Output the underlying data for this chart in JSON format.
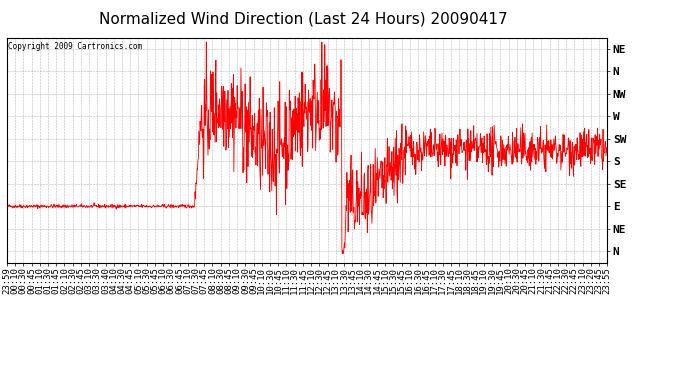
{
  "title": "Normalized Wind Direction (Last 24 Hours) 20090417",
  "copyright_text": "Copyright 2009 Cartronics.com",
  "line_color": "#ff0000",
  "background_color": "#ffffff",
  "grid_color": "#b0b0b0",
  "y_tick_labels": [
    "NE",
    "N",
    "NW",
    "W",
    "SW",
    "S",
    "SE",
    "E",
    "NE",
    "N"
  ],
  "y_tick_values": [
    10,
    9,
    8,
    7,
    6,
    5,
    4,
    3,
    2,
    1
  ],
  "y_min": 0.5,
  "y_max": 10.5,
  "x_tick_labels": [
    "23:59",
    "00:10",
    "00:30",
    "00:45",
    "01:10",
    "01:30",
    "01:45",
    "02:10",
    "02:30",
    "02:45",
    "03:10",
    "03:30",
    "03:40",
    "04:10",
    "04:30",
    "04:45",
    "05:10",
    "05:30",
    "05:45",
    "06:10",
    "06:30",
    "06:45",
    "07:10",
    "07:30",
    "07:45",
    "08:10",
    "08:30",
    "08:45",
    "09:10",
    "09:30",
    "09:45",
    "10:10",
    "10:30",
    "10:45",
    "11:10",
    "11:30",
    "11:45",
    "12:10",
    "12:30",
    "12:45",
    "13:10",
    "13:30",
    "13:45",
    "14:10",
    "14:30",
    "14:45",
    "15:10",
    "15:30",
    "15:45",
    "16:10",
    "16:30",
    "16:45",
    "17:10",
    "17:30",
    "17:45",
    "18:10",
    "18:30",
    "18:45",
    "19:10",
    "19:30",
    "19:45",
    "20:10",
    "20:30",
    "20:45",
    "21:10",
    "21:30",
    "21:45",
    "22:10",
    "22:30",
    "22:45",
    "23:10",
    "23:20",
    "23:45",
    "23:55"
  ],
  "title_fontsize": 11,
  "tick_fontsize": 6.5,
  "ytick_fontsize": 8
}
